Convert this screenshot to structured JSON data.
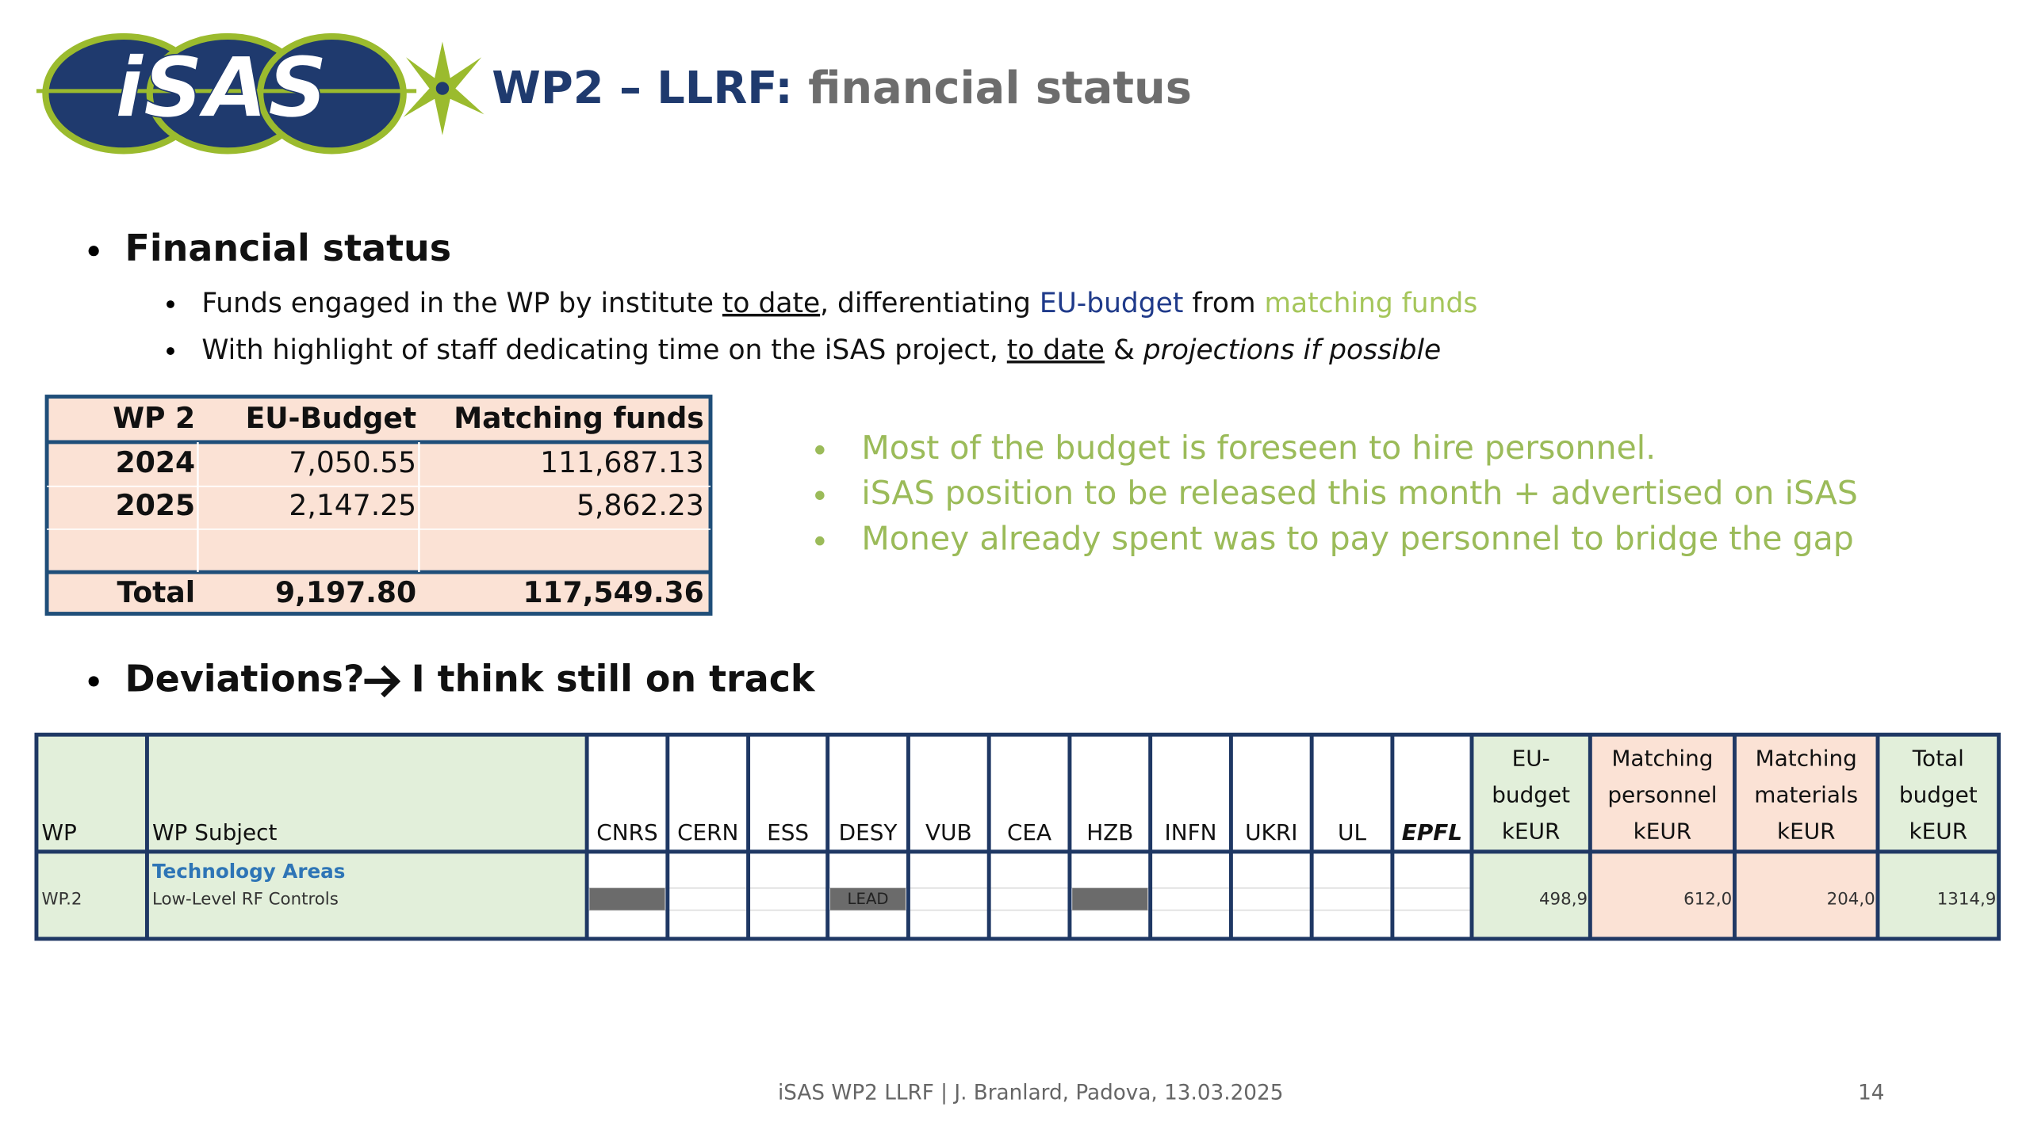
{
  "header": {
    "logo": "iSAS",
    "title_main": "WP2 – LLRF:",
    "title_rest": "financial status"
  },
  "section1": {
    "heading": "Financial status",
    "bullets": [
      [
        "Funds engaged in the WP by institute ",
        "to date",
        ", differentiating ",
        "EU-budget",
        " from ",
        "matching funds"
      ],
      [
        "With highlight of staff dedicating time on the iSAS project, ",
        "to date",
        " & ",
        "projections if possible"
      ]
    ]
  },
  "summary_table": {
    "header": [
      "WP 2",
      "EU-Budget",
      "Matching funds"
    ],
    "rows": [
      [
        "2024",
        "7,050.55",
        "111,687.13"
      ],
      [
        "2025",
        "2,147.25",
        "5,862.23"
      ]
    ],
    "total": [
      "Total",
      "9,197.80",
      "117,549.36"
    ]
  },
  "notes": [
    "Most of the budget is foreseen to hire personnel.",
    "iSAS position to be released this month + advertised on iSAS",
    "Money already spent was to pay personnel to bridge the gap"
  ],
  "section2": {
    "heading_a": "Deviations?",
    "heading_b": "I think still on track"
  },
  "wp_table": {
    "columns": [
      "WP",
      "WP Subject",
      "CNRS",
      "CERN",
      "ESS",
      "DESY",
      "VUB",
      "CEA",
      "HZB",
      "INFN",
      "UKRI",
      "UL",
      "EPFL"
    ],
    "budget_columns": [
      [
        "EU-",
        "budget",
        "kEUR"
      ],
      [
        "Matching",
        "personnel",
        "kEUR"
      ],
      [
        "Matching",
        "materials",
        "kEUR"
      ],
      [
        "Total",
        "budget",
        "kEUR"
      ]
    ],
    "row": {
      "wp": "WP.2",
      "area": "Technology Areas",
      "subject": "Low-Level RF Controls",
      "lead": "LEAD",
      "values": [
        "498,9",
        "612,0",
        "204,0",
        "1314,9"
      ]
    }
  },
  "footer": {
    "text": "iSAS WP2 LLRF | J. Branlard, Padova, 13.03.2025",
    "page": "14"
  }
}
